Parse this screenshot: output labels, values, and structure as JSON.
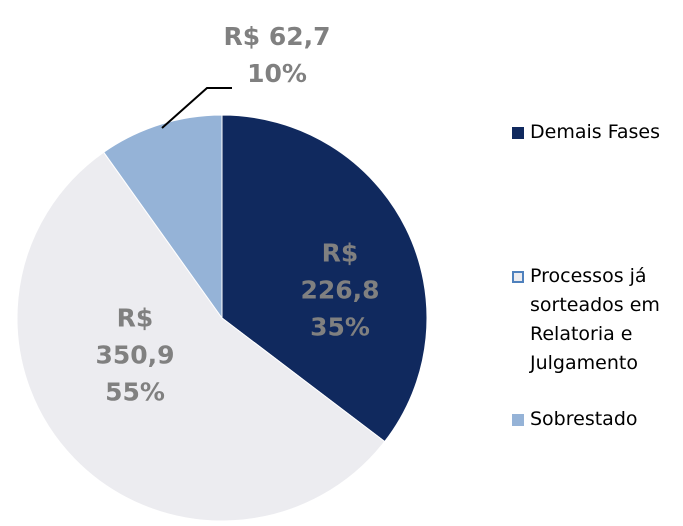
{
  "chart_data": {
    "type": "pie",
    "categories": [
      "Demais Fases",
      "Processos já sorteados em Relatoria e Julgamento",
      "Sobrestado"
    ],
    "values": [
      226.8,
      350.9,
      62.7
    ],
    "value_labels": [
      "R$ 226,8",
      "R$ 350,9",
      "R$ 62,7"
    ],
    "percentages": [
      35,
      55,
      10
    ],
    "percentage_labels": [
      "35%",
      "55%",
      "10%"
    ],
    "colors": [
      "#10295e",
      "#ececf0",
      "#95b3d7"
    ],
    "legend": "right"
  }
}
